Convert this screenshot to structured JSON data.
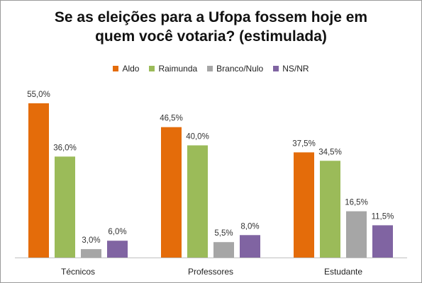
{
  "chart_data": {
    "type": "bar",
    "title_line1": "Se as eleições para a Ufopa fossem hoje em",
    "title_line2": "quem você votaria? (estimulada)",
    "categories": [
      "Técnicos",
      "Professores",
      "Estudante"
    ],
    "series": [
      {
        "name": "Aldo",
        "color": "#E46C0A",
        "values": [
          55.0,
          46.5,
          37.5
        ],
        "labels": [
          "55,0%",
          "46,5%",
          "37,5%"
        ]
      },
      {
        "name": "Raimunda",
        "color": "#9BBB59",
        "values": [
          36.0,
          40.0,
          34.5
        ],
        "labels": [
          "36,0%",
          "40,0%",
          "34,5%"
        ]
      },
      {
        "name": "Branco/Nulo",
        "color": "#A6A6A6",
        "values": [
          3.0,
          5.5,
          16.5
        ],
        "labels": [
          "3,0%",
          "5,5%",
          "16,5%"
        ]
      },
      {
        "name": "NS/NR",
        "color": "#8064A2",
        "values": [
          6.0,
          8.0,
          11.5
        ],
        "labels": [
          "6,0%",
          "8,0%",
          "11,5%"
        ]
      }
    ],
    "ylim": [
      0,
      55
    ],
    "legend_position": "top",
    "grid": false
  }
}
